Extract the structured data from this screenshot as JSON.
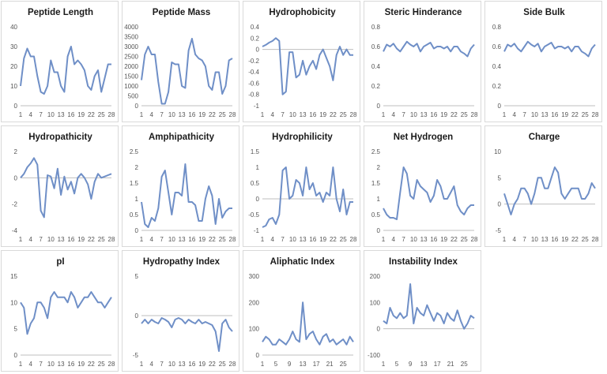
{
  "chart_data": [
    {
      "type": "line",
      "title": "Peptide Length",
      "ylim": [
        0,
        40
      ],
      "yticks": [
        0,
        10,
        20,
        30,
        40
      ],
      "xticks": [
        "1",
        "4",
        "7",
        "10",
        "13",
        "16",
        "19",
        "22",
        "25",
        "28"
      ],
      "values": [
        10,
        24,
        29,
        25,
        25,
        15,
        7,
        6,
        10,
        23,
        17,
        17,
        10,
        7,
        25,
        30,
        21,
        23,
        21,
        18,
        10,
        8,
        15,
        18,
        7,
        14,
        21,
        21
      ]
    },
    {
      "type": "line",
      "title": "Peptide Mass",
      "ylim": [
        0,
        4000
      ],
      "yticks": [
        0,
        500,
        1000,
        1500,
        2000,
        2500,
        3000,
        3500,
        4000
      ],
      "xticks": [
        "1",
        "4",
        "7",
        "10",
        "13",
        "16",
        "19",
        "22",
        "25",
        "28"
      ],
      "xticks_text": "1   4   7  10131619222528",
      "values": [
        1300,
        2600,
        3000,
        2600,
        2600,
        1200,
        100,
        100,
        700,
        2200,
        2100,
        2100,
        1000,
        900,
        2800,
        3400,
        2600,
        2400,
        2300,
        2000,
        1000,
        800,
        1700,
        1700,
        600,
        1000,
        2300,
        2400
      ]
    },
    {
      "type": "line",
      "title": "Hydrophobicity",
      "ylim": [
        -1,
        0.4
      ],
      "yticks": [
        -1,
        -0.8,
        -0.6,
        -0.4,
        -0.2,
        0,
        0.2,
        0.4
      ],
      "xticks": [
        "1",
        "4",
        "7",
        "10",
        "13",
        "16",
        "19",
        "22",
        "25",
        "28"
      ],
      "values": [
        0.05,
        0.08,
        0.12,
        0.15,
        0.2,
        0.15,
        -0.8,
        -0.75,
        -0.05,
        -0.05,
        -0.5,
        -0.45,
        -0.2,
        -0.45,
        -0.3,
        -0.2,
        -0.35,
        -0.1,
        0,
        -0.15,
        -0.3,
        -0.55,
        -0.1,
        0.05,
        -0.1,
        0,
        -0.1,
        -0.1
      ]
    },
    {
      "type": "line",
      "title": "Steric Hinderance",
      "ylim": [
        0,
        0.8
      ],
      "yticks": [
        0,
        0.2,
        0.4,
        0.6,
        0.8
      ],
      "xticks": [
        "1",
        "4",
        "7",
        "10",
        "13",
        "16",
        "19",
        "22",
        "25",
        "28"
      ],
      "values": [
        0.55,
        0.62,
        0.6,
        0.63,
        0.58,
        0.55,
        0.6,
        0.65,
        0.62,
        0.6,
        0.63,
        0.55,
        0.6,
        0.62,
        0.64,
        0.58,
        0.6,
        0.6,
        0.58,
        0.6,
        0.55,
        0.6,
        0.6,
        0.55,
        0.53,
        0.5,
        0.58,
        0.62
      ]
    },
    {
      "type": "line",
      "title": "Side Bulk",
      "ylim": [
        0,
        0.8
      ],
      "yticks": [
        0,
        0.2,
        0.4,
        0.6,
        0.8
      ],
      "xticks": [
        "1",
        "4",
        "7",
        "10",
        "13",
        "16",
        "19",
        "22",
        "25",
        "28"
      ],
      "values": [
        0.55,
        0.62,
        0.6,
        0.63,
        0.58,
        0.55,
        0.6,
        0.65,
        0.62,
        0.6,
        0.63,
        0.55,
        0.6,
        0.62,
        0.64,
        0.58,
        0.6,
        0.6,
        0.58,
        0.6,
        0.55,
        0.6,
        0.6,
        0.55,
        0.53,
        0.5,
        0.58,
        0.62
      ]
    },
    {
      "type": "line",
      "title": "Hydropathicity",
      "ylim": [
        -4,
        2
      ],
      "yticks": [
        -4,
        -2,
        0,
        2
      ],
      "xticks": [
        "1",
        "4",
        "7",
        "10",
        "13",
        "16",
        "19",
        "22",
        "25",
        "28"
      ],
      "values": [
        0,
        0.3,
        0.8,
        1.1,
        1.5,
        1,
        -2.5,
        -3,
        0.2,
        0.1,
        -0.8,
        0.7,
        -1.3,
        0.1,
        -0.9,
        -0.3,
        -1.2,
        0,
        0.3,
        0,
        -0.5,
        -1.6,
        -0.3,
        0.3,
        0,
        0.1,
        0.2,
        0.3
      ]
    },
    {
      "type": "line",
      "title": "Amphipathicity",
      "ylim": [
        0,
        2.5
      ],
      "yticks": [
        0,
        0.5,
        1,
        1.5,
        2,
        2.5
      ],
      "xticks": [
        "1",
        "4",
        "7",
        "10",
        "13",
        "16",
        "19",
        "22",
        "25",
        "28"
      ],
      "values": [
        0.9,
        0.2,
        0.1,
        0.4,
        0.3,
        0.7,
        1.7,
        1.9,
        1.2,
        0.5,
        1.2,
        1.2,
        1.1,
        2.1,
        0.9,
        0.9,
        0.8,
        0.3,
        0.3,
        1,
        1.4,
        1.1,
        0.2,
        1,
        0.4,
        0.6,
        0.7,
        0.7
      ]
    },
    {
      "type": "line",
      "title": "Hydrophilicity",
      "ylim": [
        -1,
        1.5
      ],
      "yticks": [
        -1,
        -0.5,
        0,
        0.5,
        1,
        1.5
      ],
      "xticks": [
        "1",
        "4",
        "7",
        "10",
        "13",
        "16",
        "19",
        "22",
        "25",
        "28"
      ],
      "values": [
        -0.9,
        -0.85,
        -0.65,
        -0.6,
        -0.8,
        -0.5,
        0.9,
        1,
        0,
        0.1,
        0.6,
        0.5,
        0.1,
        1,
        0.3,
        0.5,
        0.1,
        0.2,
        -0.1,
        0.2,
        0.1,
        1,
        0,
        -0.4,
        0.3,
        -0.5,
        -0.1,
        -0.1
      ]
    },
    {
      "type": "line",
      "title": "Net Hydrogen",
      "ylim": [
        0,
        2.5
      ],
      "yticks": [
        0,
        0.5,
        1,
        1.5,
        2,
        2.5
      ],
      "xticks": [
        "1",
        "4",
        "7",
        "10",
        "13",
        "16",
        "19",
        "22",
        "25",
        "28"
      ],
      "values": [
        0.7,
        0.5,
        0.4,
        0.4,
        0.35,
        1.2,
        2,
        1.8,
        1.1,
        1,
        1.6,
        1.4,
        1.3,
        1.2,
        0.9,
        1.1,
        1.6,
        1.4,
        1,
        1,
        1.2,
        1.4,
        0.8,
        0.6,
        0.5,
        0.7,
        0.8,
        0.8
      ]
    },
    {
      "type": "line",
      "title": "Charge",
      "ylim": [
        -5,
        10
      ],
      "yticks": [
        -5,
        0,
        5,
        10
      ],
      "xticks": [
        "1",
        "4",
        "7",
        "10",
        "13",
        "16",
        "19",
        "22",
        "25",
        "28"
      ],
      "values": [
        2,
        0,
        -2,
        0,
        1,
        3,
        3,
        2,
        0,
        2,
        5,
        5,
        3,
        3,
        5,
        7,
        6,
        2,
        1,
        2,
        3,
        3,
        3,
        1,
        1,
        2,
        4,
        3
      ]
    },
    {
      "type": "line",
      "title": "pI",
      "ylim": [
        0,
        15
      ],
      "yticks": [
        0,
        5,
        10,
        15
      ],
      "xticks": [
        "1",
        "4",
        "7",
        "10",
        "13",
        "16",
        "19",
        "22",
        "25",
        "28"
      ],
      "values": [
        10,
        9,
        4,
        6,
        7,
        10,
        10,
        9,
        7,
        11,
        12,
        11,
        11,
        11,
        10,
        12,
        11,
        9,
        10,
        11,
        11,
        12,
        11,
        10,
        10,
        9,
        10,
        11
      ]
    },
    {
      "type": "line",
      "title": "Hydropathy Index",
      "ylim": [
        -5,
        5
      ],
      "yticks": [
        -5,
        0,
        5
      ],
      "xticks": [
        "1",
        "4",
        "7",
        "10",
        "13",
        "16",
        "19",
        "22",
        "25",
        "28"
      ],
      "values": [
        -1,
        -0.5,
        -1,
        -0.5,
        -0.8,
        -1,
        -0.3,
        -0.5,
        -0.8,
        -1.5,
        -0.5,
        -0.3,
        -0.5,
        -1,
        -0.5,
        -0.8,
        -1,
        -0.5,
        -1,
        -0.8,
        -1,
        -1.2,
        -2,
        -4.5,
        -1,
        -0.5,
        -1.5,
        -2
      ]
    },
    {
      "type": "line",
      "title": "Aliphatic Index",
      "ylim": [
        0,
        300
      ],
      "yticks": [
        0,
        100,
        200,
        300
      ],
      "xticks": [
        "1",
        "5",
        "9",
        "13",
        "17",
        "21",
        "25"
      ],
      "values": [
        50,
        70,
        60,
        40,
        40,
        60,
        50,
        40,
        60,
        90,
        60,
        50,
        200,
        60,
        80,
        90,
        60,
        40,
        70,
        80,
        50,
        60,
        40,
        50,
        60,
        40,
        70,
        50
      ]
    },
    {
      "type": "line",
      "title": "Instability Index",
      "ylim": [
        -100,
        200
      ],
      "yticks": [
        -100,
        0,
        100,
        200
      ],
      "xticks": [
        "1",
        "5",
        "9",
        "13",
        "17",
        "21",
        "25"
      ],
      "values": [
        30,
        20,
        80,
        50,
        40,
        60,
        40,
        50,
        170,
        20,
        80,
        60,
        50,
        90,
        60,
        30,
        60,
        50,
        20,
        60,
        40,
        30,
        70,
        30,
        0,
        20,
        50,
        40
      ]
    }
  ]
}
